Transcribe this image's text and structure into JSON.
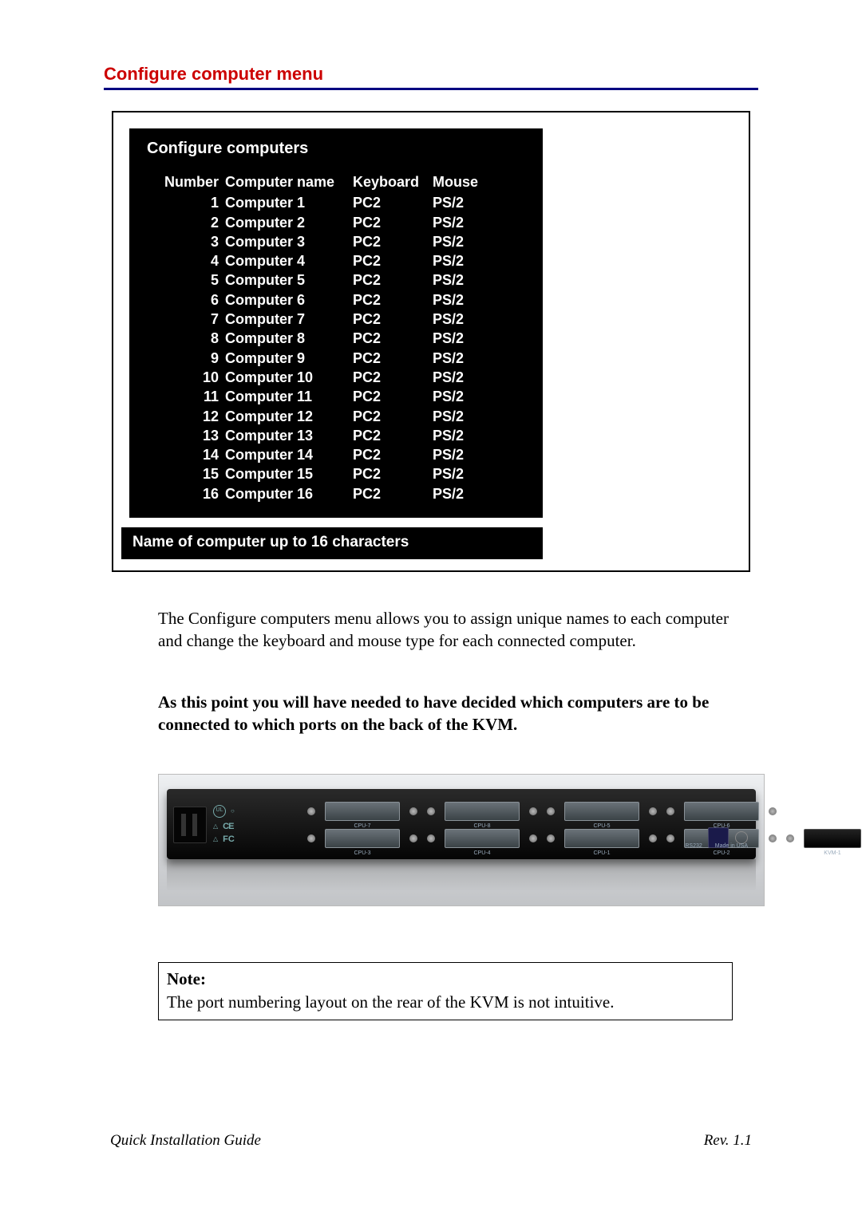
{
  "section_title": "Configure computer menu",
  "menu": {
    "title": "Configure computers",
    "headers": {
      "number": "Number",
      "name": "Computer name",
      "keyboard": "Keyboard",
      "mouse": "Mouse"
    },
    "rows": [
      {
        "num": "1",
        "name": "Computer  1",
        "kb": "PC2",
        "ms": "PS/2"
      },
      {
        "num": "2",
        "name": "Computer  2",
        "kb": "PC2",
        "ms": "PS/2"
      },
      {
        "num": "3",
        "name": "Computer  3",
        "kb": "PC2",
        "ms": "PS/2"
      },
      {
        "num": "4",
        "name": "Computer  4",
        "kb": "PC2",
        "ms": "PS/2"
      },
      {
        "num": "5",
        "name": "Computer  5",
        "kb": "PC2",
        "ms": "PS/2"
      },
      {
        "num": "6",
        "name": "Computer  6",
        "kb": "PC2",
        "ms": "PS/2"
      },
      {
        "num": "7",
        "name": "Computer  7",
        "kb": "PC2",
        "ms": "PS/2"
      },
      {
        "num": "8",
        "name": "Computer  8",
        "kb": "PC2",
        "ms": "PS/2"
      },
      {
        "num": "9",
        "name": "Computer  9",
        "kb": "PC2",
        "ms": "PS/2"
      },
      {
        "num": "10",
        "name": "Computer 10",
        "kb": "PC2",
        "ms": "PS/2"
      },
      {
        "num": "11",
        "name": "Computer 11",
        "kb": "PC2",
        "ms": "PS/2"
      },
      {
        "num": "12",
        "name": "Computer 12",
        "kb": "PC2",
        "ms": "PS/2"
      },
      {
        "num": "13",
        "name": "Computer 13",
        "kb": "PC2",
        "ms": "PS/2"
      },
      {
        "num": "14",
        "name": "Computer 14",
        "kb": "PC2",
        "ms": "PS/2"
      },
      {
        "num": "15",
        "name": "Computer 15",
        "kb": "PC2",
        "ms": "PS/2"
      },
      {
        "num": "16",
        "name": "Computer 16",
        "kb": "PC2",
        "ms": "PS/2"
      }
    ],
    "footer": "Name of computer up to 16 characters"
  },
  "paragraph1": "The Configure computers menu allows you to assign unique names to each computer and change the keyboard and mouse type for each connected computer.",
  "paragraph2": "As this point you will have needed to have decided which computers are to be connected to which ports on the back of the KVM.",
  "kvm_photo": {
    "top_ports": [
      "CPU-7",
      "CPU-8",
      "CPU-5",
      "CPU-6"
    ],
    "bottom_ports": [
      "CPU-3",
      "CPU-4",
      "CPU-1",
      "CPU-2"
    ],
    "kvm_label": "KVM-1",
    "rs_label": "RS232",
    "made_label": "Made in USA",
    "ce": "CE",
    "fc": "FC"
  },
  "note": {
    "title": "Note:",
    "text": "The port numbering layout on the rear of the KVM is not intuitive."
  },
  "footer": {
    "left": "Quick Installation Guide",
    "right": "Rev. 1.1"
  },
  "colors": {
    "title_red": "#cc0000",
    "underline_navy": "#000080",
    "menu_bg": "#000000",
    "menu_text": "#ffffff"
  }
}
